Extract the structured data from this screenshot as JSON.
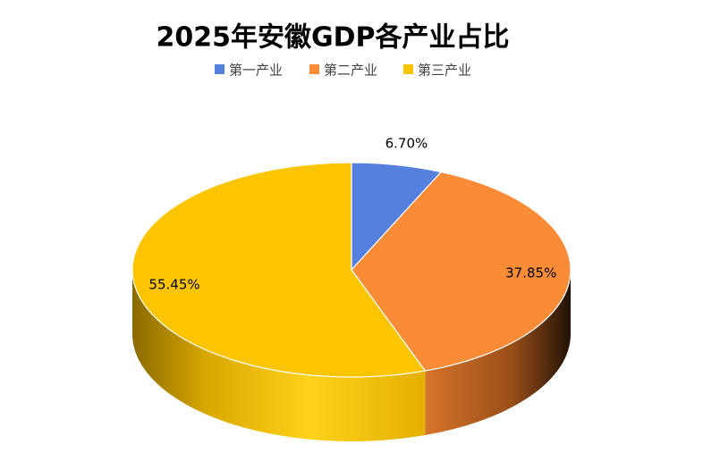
{
  "chart_data": {
    "type": "pie3d",
    "title": "2025年安徽GDP各产业占比",
    "series": [
      {
        "name": "第一产业",
        "color": "#5580de"
      },
      {
        "name": "第二产业",
        "color": "#fb8c37"
      },
      {
        "name": "第三产业",
        "color": "#fdc400"
      }
    ],
    "values": [
      6.7,
      37.85,
      55.45
    ],
    "value_labels": [
      "6.70%",
      "37.85%",
      "55.45%"
    ],
    "legend": "top"
  }
}
